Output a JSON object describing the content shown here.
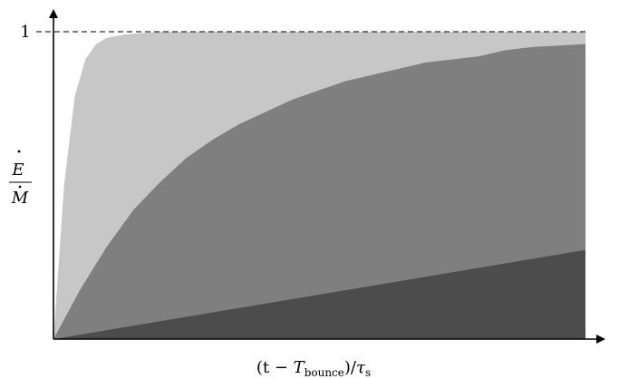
{
  "chart_data": {
    "type": "area",
    "title": "",
    "xlabel": "(t − T_bounce)/τ_s",
    "ylabel": "Ė/Ṁ",
    "ylim": [
      0,
      1
    ],
    "yticks": [
      {
        "value": 1,
        "label": "1"
      }
    ],
    "reference_line": {
      "y": 1,
      "style": "dashed"
    },
    "grid": false,
    "legend": "none",
    "series": [
      {
        "color": "#c8c7c8",
        "x": [
          0,
          0.02,
          0.04,
          0.06,
          0.08,
          0.1,
          0.13,
          0.16,
          0.2,
          0.3,
          1.0
        ],
        "y": [
          0,
          0.5,
          0.79,
          0.91,
          0.96,
          0.98,
          0.99,
          0.995,
          1.0,
          1.0,
          1.0
        ]
      },
      {
        "color": "#7f7f7f",
        "x": [
          0,
          0.05,
          0.1,
          0.15,
          0.2,
          0.25,
          0.3,
          0.35,
          0.4,
          0.45,
          0.5,
          0.55,
          0.6,
          0.65,
          0.7,
          0.75,
          0.8,
          0.85,
          0.9,
          0.95,
          1.0
        ],
        "y": [
          0,
          0.16,
          0.3,
          0.42,
          0.51,
          0.59,
          0.65,
          0.7,
          0.74,
          0.78,
          0.81,
          0.84,
          0.86,
          0.88,
          0.9,
          0.91,
          0.92,
          0.94,
          0.95,
          0.955,
          0.96
        ]
      },
      {
        "color": "#4c4c4c",
        "x": [
          0,
          1.0
        ],
        "y": [
          0,
          0.29
        ]
      }
    ]
  },
  "axis_labels": {
    "y_tick_1": "1",
    "y_numerator": "E",
    "y_denominator": "M",
    "x_open": "(t − ",
    "x_T": "T",
    "x_sub": "bounce",
    "x_mid": ")/",
    "x_tau": "τ",
    "x_tau_sub": "s"
  }
}
